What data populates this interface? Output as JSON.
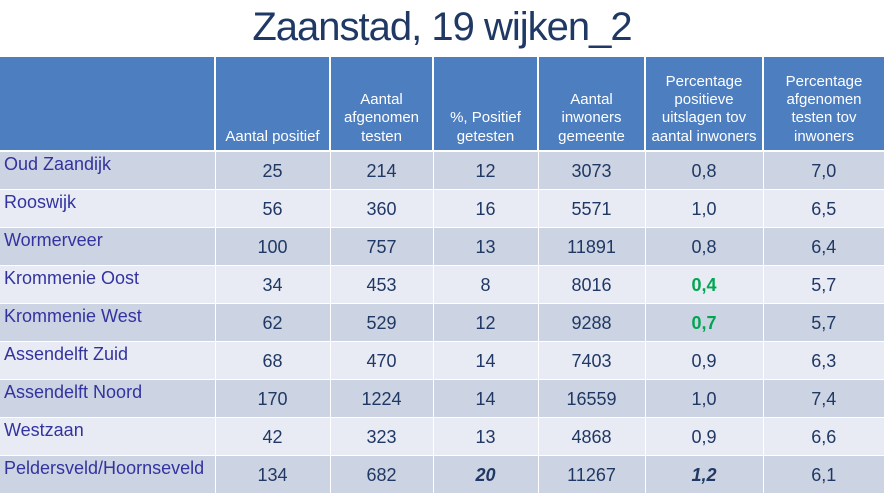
{
  "title": "Zaanstad, 19 wijken_2",
  "colors": {
    "header_bg": "#4d7ec0",
    "header_text": "#ffffff",
    "row_odd_bg": "#ccd3e2",
    "row_even_bg": "#e9ebf4",
    "label_text": "#3333a0",
    "value_text": "#1f3864",
    "title_text": "#1f3864",
    "highlight_green": "#00a651",
    "grid": "#ffffff"
  },
  "chart_data": {
    "type": "table",
    "title": "Zaanstad, 19 wijken_2",
    "columns": [
      "",
      "Aantal positief",
      "Aantal afgenomen testen",
      "%, Positief getesten",
      "Aantal inwoners gemeente",
      "Percentage positieve uitslagen tov aantal inwoners",
      "Percentage afgenomen testen tov inwoners"
    ],
    "rows": [
      {
        "name": "Oud Zaandijk",
        "values": [
          "25",
          "214",
          "12",
          "3073",
          "0,8",
          "7,0"
        ],
        "styles": [
          null,
          null,
          null,
          null,
          null,
          null
        ]
      },
      {
        "name": "Rooswijk",
        "values": [
          "56",
          "360",
          "16",
          "5571",
          "1,0",
          "6,5"
        ],
        "styles": [
          null,
          null,
          null,
          null,
          null,
          null
        ]
      },
      {
        "name": "Wormerveer",
        "values": [
          "100",
          "757",
          "13",
          "11891",
          "0,8",
          "6,4"
        ],
        "styles": [
          null,
          null,
          null,
          null,
          null,
          null
        ]
      },
      {
        "name": "Krommenie Oost",
        "values": [
          "34",
          "453",
          "8",
          "8016",
          "0,4",
          "5,7"
        ],
        "styles": [
          null,
          null,
          null,
          null,
          "green-bold",
          null
        ]
      },
      {
        "name": "Krommenie West",
        "values": [
          "62",
          "529",
          "12",
          "9288",
          "0,7",
          "5,7"
        ],
        "styles": [
          null,
          null,
          null,
          null,
          "green-bold",
          null
        ]
      },
      {
        "name": "Assendelft Zuid",
        "values": [
          "68",
          "470",
          "14",
          "7403",
          "0,9",
          "6,3"
        ],
        "styles": [
          null,
          null,
          null,
          null,
          null,
          null
        ]
      },
      {
        "name": "Assendelft Noord",
        "values": [
          "170",
          "1224",
          "14",
          "16559",
          "1,0",
          "7,4"
        ],
        "styles": [
          null,
          null,
          null,
          null,
          null,
          null
        ]
      },
      {
        "name": "Westzaan",
        "values": [
          "42",
          "323",
          "13",
          "4868",
          "0,9",
          "6,6"
        ],
        "styles": [
          null,
          null,
          null,
          null,
          null,
          null
        ]
      },
      {
        "name": "Peldersveld/Hoornseveld",
        "values": [
          "134",
          "682",
          "20",
          "11267",
          "1,2",
          "6,1"
        ],
        "styles": [
          null,
          null,
          "bold-italic",
          null,
          "bold-italic",
          null
        ]
      }
    ]
  }
}
